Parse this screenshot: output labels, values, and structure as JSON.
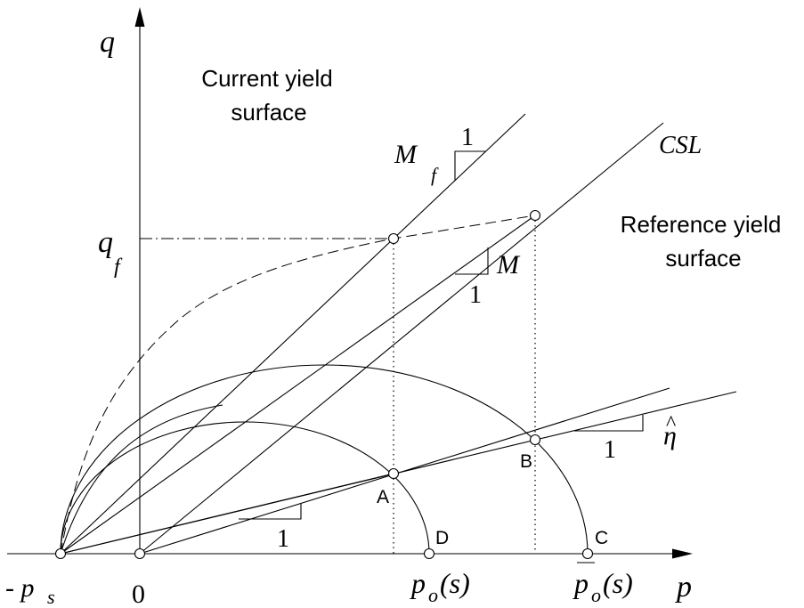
{
  "axes": {
    "q_label": "q",
    "p_label": "p",
    "origin_label": "0",
    "neg_ps_prefix": "- p",
    "neg_ps_sub": "s",
    "qf_main": "q",
    "qf_sub": "f"
  },
  "annotations": {
    "current_yield_line1": "Current yield",
    "current_yield_line2": "surface",
    "reference_yield_line1": "Reference yield",
    "reference_yield_line2": "surface",
    "csl": "CSL"
  },
  "slopes": {
    "mf_main": "M",
    "mf_sub": "f",
    "mf_run": "1",
    "m_label": "M",
    "m_run": "1",
    "eta_symbol": "η",
    "eta_hat": "^",
    "eta_run": "1",
    "a_run": "1"
  },
  "points": {
    "A": "A",
    "B": "B",
    "C": "C",
    "D": "D"
  },
  "p_axis_labels": {
    "po_main": "p",
    "po_sub": "o",
    "po_arg": "(s)",
    "po_bar_main": "p",
    "po_bar_sub": "o",
    "po_bar_arg": "(s)"
  }
}
